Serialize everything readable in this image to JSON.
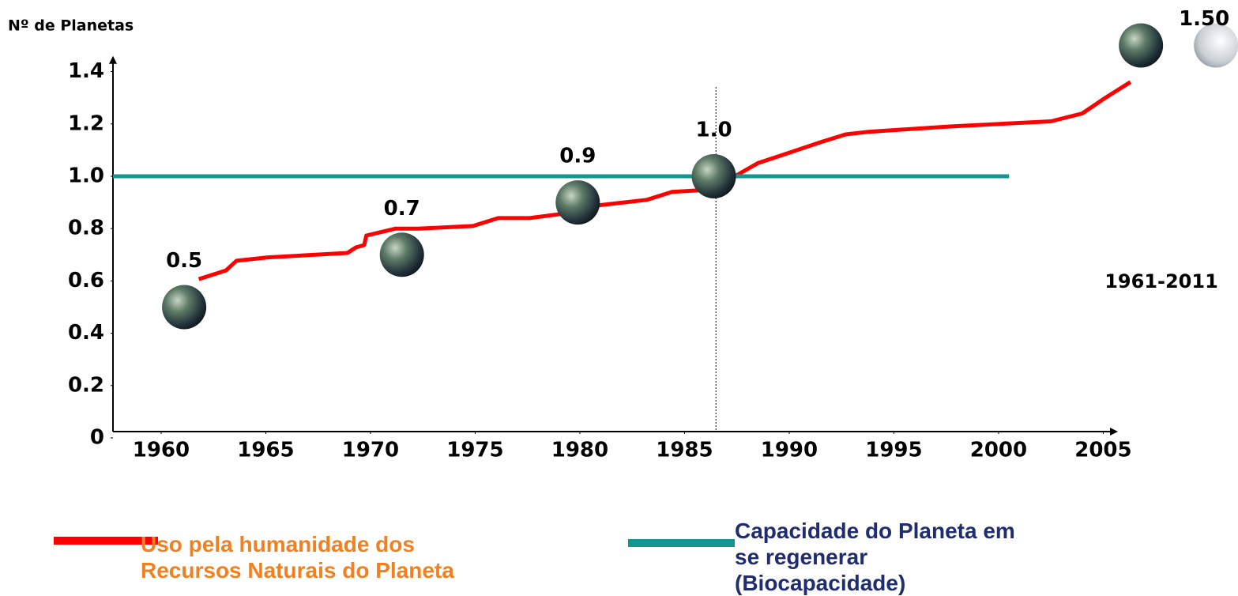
{
  "chart_data": {
    "type": "line",
    "y_label": "Nº de Planetas",
    "period_label": "1961-2011",
    "xlim": [
      1957.7,
      2005.7
    ],
    "xticks": [
      1960,
      1965,
      1970,
      1975,
      1980,
      1985,
      1990,
      1995,
      2000,
      2005
    ],
    "ylim": [
      0,
      1.46
    ],
    "yticks": [
      0,
      0.2,
      0.4,
      0.6,
      0.8,
      {
        "value": 1,
        "label": "1.0"
      },
      1.2,
      1.4
    ],
    "reference_x": 1986.5,
    "series": [
      {
        "name": "Uso pela humanidade dos Recursos Naturais do Planeta",
        "color": "#ff0000",
        "label_color": "#f08020",
        "x": [
          1961.8,
          1963.1,
          1963.6,
          1965.1,
          1968.9,
          1969.3,
          1969.7,
          1969.8,
          1971.2,
          1972.3,
          1974.9,
          1976.1,
          1977.6,
          1979.5,
          1981.0,
          1982.1,
          1983.2,
          1984.4,
          1986.5,
          1987.4,
          1988.5,
          1990.0,
          1991.5,
          1992.7,
          1993.8,
          1997.6,
          2002.5,
          2004.0,
          2005.1,
          2006.3
        ],
        "values": [
          0.607,
          0.64,
          0.677,
          0.69,
          0.707,
          0.728,
          0.737,
          0.773,
          0.8,
          0.8,
          0.81,
          0.84,
          0.84,
          0.86,
          0.89,
          0.9,
          0.91,
          0.94,
          0.95,
          1.0,
          1.05,
          1.09,
          1.13,
          1.16,
          1.17,
          1.19,
          1.21,
          1.24,
          1.3,
          1.36
        ]
      },
      {
        "name": "Capacidade do Planeta em se regenerar (Biocapacidade)",
        "color": "#13968f",
        "label_color": "#1f2d6e",
        "x": [
          1957.7,
          2000.5
        ],
        "values": [
          1,
          1
        ]
      }
    ],
    "markers": {
      "x": [
        1961.1,
        1971.5,
        1979.9,
        1986.4,
        2006.8
      ],
      "values": [
        0.5,
        0.7,
        0.9,
        1,
        1.5
      ],
      "value_labels": [
        "0.5",
        "0.7",
        "0.9",
        "1.0",
        "1.50"
      ]
    }
  }
}
